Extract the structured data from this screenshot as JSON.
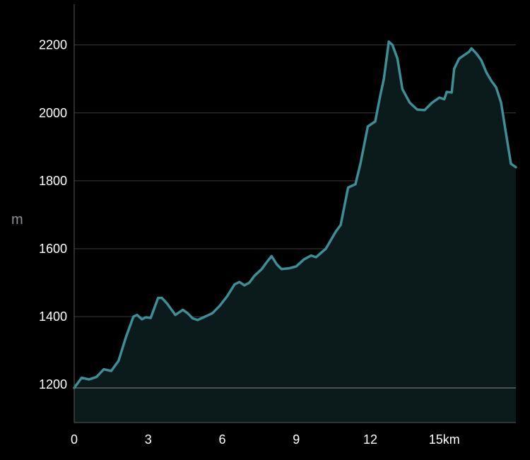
{
  "chart_data": {
    "type": "area",
    "title": "",
    "xlabel": "km",
    "ylabel": "m",
    "x_ticks": [
      {
        "value": 0,
        "label": "0"
      },
      {
        "value": 3,
        "label": "3"
      },
      {
        "value": 6,
        "label": "6"
      },
      {
        "value": 9,
        "label": "9"
      },
      {
        "value": 12,
        "label": "12"
      },
      {
        "value": 15,
        "label": "15km"
      }
    ],
    "y_ticks": [
      {
        "value": 1200,
        "label": "1200"
      },
      {
        "value": 1400,
        "label": "1400"
      },
      {
        "value": 1600,
        "label": "1600"
      },
      {
        "value": 1800,
        "label": "1800"
      },
      {
        "value": 2000,
        "label": "2000"
      },
      {
        "value": 2200,
        "label": "2200"
      }
    ],
    "xlim": [
      0,
      17.9
    ],
    "ylim": [
      1088,
      2320
    ],
    "baseline": 1190,
    "grid": true,
    "colors": {
      "background": "#000000",
      "line": "#3e8e96",
      "fill": "#0b1a1b",
      "grid": "#3a3a3c",
      "axis": "#5a5a5c",
      "baseline": "#636366",
      "tick_text": "#ffffff",
      "unit_text": "#8e8e93"
    },
    "series": [
      {
        "x": [
          0,
          0.3,
          0.6,
          0.9,
          1.2,
          1.5,
          1.8,
          2.1,
          2.4,
          2.55,
          2.75,
          2.9,
          3.1,
          3.4,
          3.55,
          3.75,
          3.9,
          4.1,
          4.4,
          4.6,
          4.8,
          5.0,
          5.3,
          5.6,
          5.9,
          6.2,
          6.5,
          6.7,
          6.9,
          7.1,
          7.3,
          7.6,
          7.8,
          8.0,
          8.2,
          8.4,
          8.7,
          9.0,
          9.3,
          9.6,
          9.8,
          10.2,
          10.6,
          10.8,
          11.1,
          11.4,
          11.6,
          11.9,
          12.2,
          12.4,
          12.55,
          12.75,
          12.9,
          13.1,
          13.3,
          13.6,
          13.9,
          14.2,
          14.5,
          14.8,
          15.0,
          15.1,
          15.3,
          15.4,
          15.6,
          15.8,
          16.0,
          16.1,
          16.3,
          16.5,
          16.7,
          16.9,
          17.1,
          17.3,
          17.5,
          17.7,
          17.9
        ],
        "y": [
          1190,
          1220,
          1215,
          1222,
          1245,
          1240,
          1270,
          1340,
          1400,
          1405,
          1392,
          1398,
          1396,
          1455,
          1455,
          1440,
          1425,
          1405,
          1420,
          1410,
          1395,
          1390,
          1400,
          1410,
          1432,
          1460,
          1495,
          1502,
          1492,
          1500,
          1520,
          1540,
          1560,
          1578,
          1555,
          1540,
          1542,
          1548,
          1568,
          1580,
          1575,
          1600,
          1650,
          1670,
          1780,
          1790,
          1850,
          1960,
          1975,
          2050,
          2100,
          2210,
          2200,
          2160,
          2070,
          2030,
          2010,
          2008,
          2030,
          2045,
          2040,
          2062,
          2060,
          2130,
          2160,
          2170,
          2180,
          2190,
          2175,
          2155,
          2120,
          2095,
          2075,
          2030,
          1940,
          1850,
          1840
        ]
      }
    ]
  }
}
